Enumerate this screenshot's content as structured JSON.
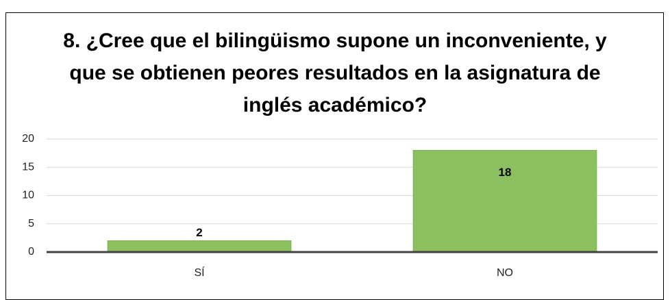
{
  "chart_data": {
    "type": "bar",
    "title": "8. ¿Cree que el bilingüismo supone un inconveniente, y que se obtienen peores resultados en la asignatura de inglés académico?",
    "categories": [
      "SÍ",
      "NO"
    ],
    "values": [
      2,
      18
    ],
    "color": "#8cbf5f",
    "ylim": [
      0,
      20
    ],
    "yticks": [
      0,
      5,
      10,
      15,
      20
    ],
    "grid": true
  }
}
